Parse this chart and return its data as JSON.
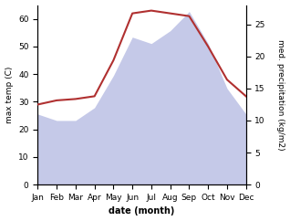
{
  "months": [
    "Jan",
    "Feb",
    "Mar",
    "Apr",
    "May",
    "Jun",
    "Jul",
    "Aug",
    "Sep",
    "Oct",
    "Nov",
    "Dec"
  ],
  "temp": [
    29,
    30.5,
    31,
    32,
    45,
    62,
    63,
    62,
    61,
    50,
    38,
    32
  ],
  "precip": [
    11,
    10,
    10,
    12,
    17,
    23,
    22,
    24,
    27,
    22,
    15,
    11
  ],
  "temp_color": "#b03030",
  "precip_fill_color": "#c5c9e8",
  "ylim_left": [
    0,
    65
  ],
  "ylim_right": [
    0,
    28
  ],
  "yticks_left": [
    0,
    10,
    20,
    30,
    40,
    50,
    60
  ],
  "yticks_right": [
    0,
    5,
    10,
    15,
    20,
    25
  ],
  "xlabel": "date (month)",
  "ylabel_left": "max temp (C)",
  "ylabel_right": "med. precipitation (kg/m2)"
}
